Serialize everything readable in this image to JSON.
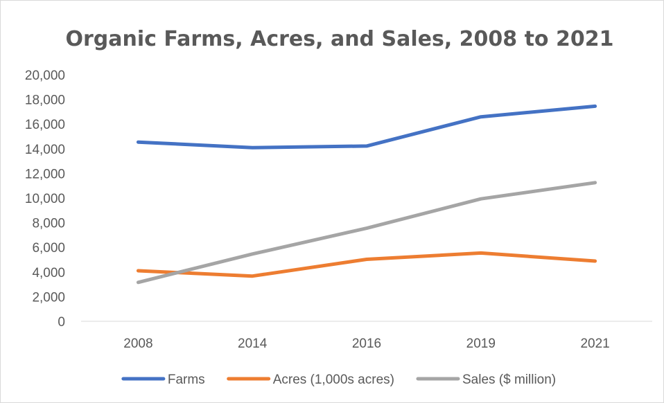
{
  "chart_data": {
    "type": "line",
    "title": "Organic Farms, Acres, and Sales, 2008 to 2021",
    "xlabel": "",
    "ylabel": "",
    "categories": [
      "2008",
      "2014",
      "2016",
      "2019",
      "2021"
    ],
    "ylim": [
      0,
      20000
    ],
    "yticks": [
      0,
      2000,
      4000,
      6000,
      8000,
      10000,
      12000,
      14000,
      16000,
      18000,
      20000
    ],
    "ytick_labels": [
      "0",
      "2,000",
      "4,000",
      "6,000",
      "8,000",
      "10,000",
      "12,000",
      "14,000",
      "16,000",
      "18,000",
      "20,000"
    ],
    "grid": false,
    "legend_position": "bottom",
    "series": [
      {
        "name": "Farms",
        "color": "#4472c4",
        "values": [
          14540,
          14090,
          14220,
          16590,
          17450
        ]
      },
      {
        "name": "Acres (1,000s acres)",
        "color": "#ed7d31",
        "values": [
          4100,
          3670,
          5030,
          5540,
          4890
        ]
      },
      {
        "name": "Sales ($ million)",
        "color": "#a5a5a5",
        "values": [
          3160,
          5460,
          7550,
          9930,
          11250
        ]
      }
    ]
  }
}
